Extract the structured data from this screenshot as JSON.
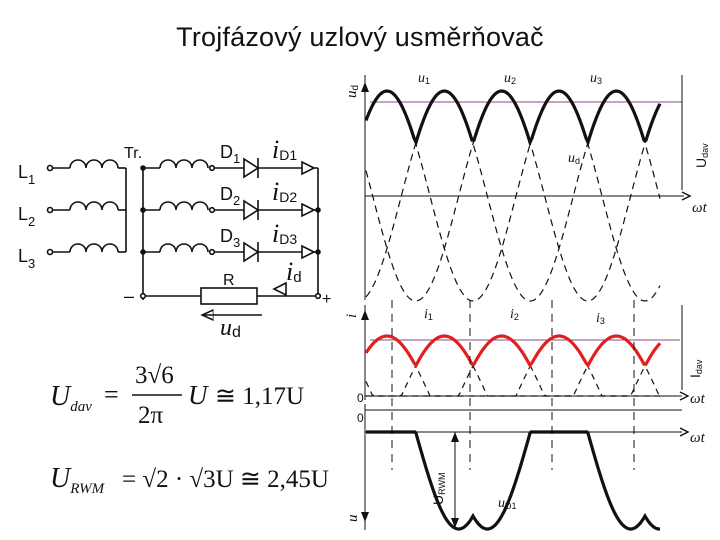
{
  "title": "Trojfázový uzlový usměrňovač",
  "circuit": {
    "inputs": [
      {
        "label": "L",
        "sub": "1"
      },
      {
        "label": "L",
        "sub": "2"
      },
      {
        "label": "L",
        "sub": "3"
      }
    ],
    "transformer_label": "Tr.",
    "diodes": [
      {
        "label": "D",
        "sub": "1",
        "current": "i",
        "current_sub": "D1"
      },
      {
        "label": "D",
        "sub": "2",
        "current": "i",
        "current_sub": "D2"
      },
      {
        "label": "D",
        "sub": "3",
        "current": "i",
        "current_sub": "D3"
      }
    ],
    "resistor_label": "R",
    "load_current": {
      "main": "i",
      "sub": "d"
    },
    "minus": "–",
    "plus": "+",
    "output_voltage": {
      "main": "u",
      "sub": "d"
    }
  },
  "formulas": {
    "udav": {
      "lhs": "U",
      "lhs_sub": "dav",
      "eq": "=",
      "num": "3√6",
      "den": "2π",
      "var": "U",
      "approx": "≅ 1,17U"
    },
    "urwm": {
      "lhs": "U",
      "lhs_sub": "RWM",
      "rhs": "= √2 · √3U ≅ 2,45U"
    }
  },
  "graphs": {
    "top": {
      "axis_label": {
        "main": "u",
        "sub": "d"
      },
      "phase_labels": [
        {
          "main": "u",
          "sub": "1"
        },
        {
          "main": "u",
          "sub": "2"
        },
        {
          "main": "u",
          "sub": "3"
        }
      ],
      "ud_label": {
        "main": "u",
        "sub": "d"
      },
      "level_label": {
        "main": "U",
        "sub": "dav"
      },
      "time_label": "ωt"
    },
    "middle": {
      "axis_label": "i",
      "phase_labels": [
        {
          "main": "i",
          "sub": "1"
        },
        {
          "main": "i",
          "sub": "2"
        },
        {
          "main": "i",
          "sub": "3"
        }
      ],
      "level_label": {
        "main": "I",
        "sub": "dav"
      },
      "zero": "0",
      "time_label": "ωt",
      "accent": "#e02020"
    },
    "bottom": {
      "axis_label": "u",
      "zero": "0",
      "time_label": "ωt",
      "level_label": {
        "main": "U",
        "sub": "RWM"
      },
      "diode_label": {
        "main": "u",
        "sub": "D1"
      }
    }
  }
}
